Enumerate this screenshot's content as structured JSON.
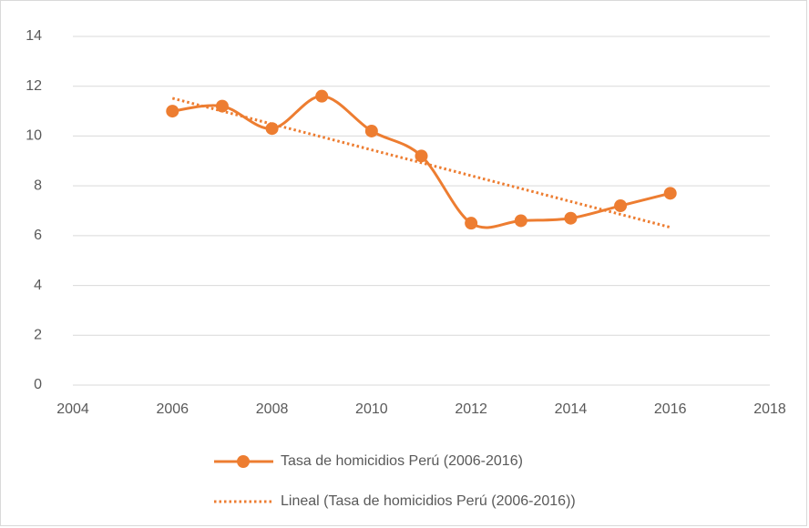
{
  "chart_data": {
    "type": "scatter",
    "x": [
      2006,
      2007,
      2008,
      2009,
      2010,
      2011,
      2012,
      2013,
      2014,
      2015,
      2016
    ],
    "series": [
      {
        "name": "Tasa de homicidios Perú (2006-2016)",
        "color": "#ed7d31",
        "smooth": true,
        "marker": "circle",
        "values": [
          11.0,
          11.2,
          10.3,
          11.6,
          10.2,
          9.2,
          6.5,
          6.6,
          6.7,
          7.2,
          7.7
        ],
        "trendline": {
          "type": "linear",
          "name": "Lineal (Tasa de homicidios Perú (2006-2016))",
          "color": "#ed7d31",
          "dash": "dotted"
        }
      }
    ],
    "xlim": [
      2004,
      2018
    ],
    "xticks": [
      2004,
      2006,
      2008,
      2010,
      2012,
      2014,
      2016,
      2018
    ],
    "ylim": [
      0,
      14
    ],
    "yticks": [
      0,
      2,
      4,
      6,
      8,
      10,
      12,
      14
    ],
    "grid": true,
    "legend": "bottom"
  }
}
